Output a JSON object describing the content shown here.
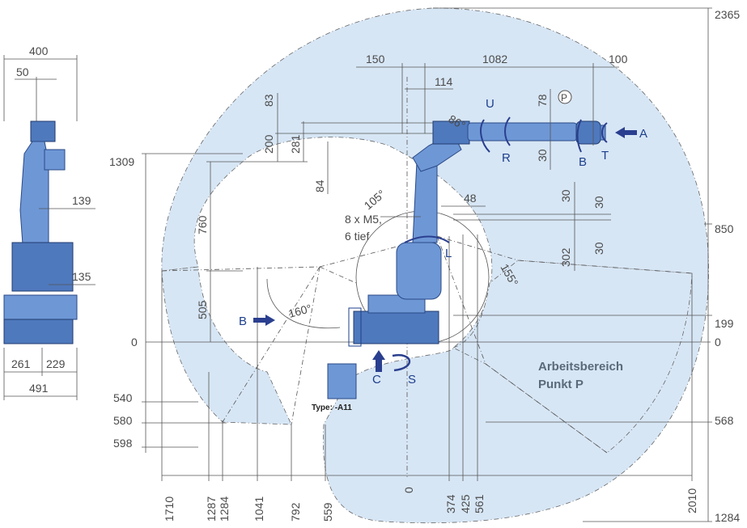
{
  "colors": {
    "workspace_fill": "#d7e6f5",
    "robot_body": "#6e97d6",
    "robot_dark": "#2b4a86",
    "arrow": "#2a3f8f",
    "dimension_text": "#4a4a4a"
  },
  "side_view": {
    "dims": {
      "w400": "400",
      "w50": "50",
      "d139": "139",
      "d135": "135",
      "w261": "261",
      "w229": "229",
      "w491": "491"
    }
  },
  "top_dims": {
    "d150": "150",
    "d1082": "1082",
    "d100": "100",
    "d114": "114",
    "d83": "83",
    "d78": "78",
    "d200": "200",
    "d281": "281",
    "d84": "84",
    "d30a": "30",
    "d48": "48",
    "d30b": "30",
    "d30c": "30",
    "d302": "302",
    "d30d": "30",
    "d760": "760",
    "d505": "505"
  },
  "right_scale": {
    "v2365": "2365",
    "v850": "850",
    "v199": "199",
    "v0": "0",
    "v568": "568",
    "v1284": "1284"
  },
  "left_scale": {
    "v1309": "1309",
    "v0": "0",
    "v540": "540",
    "v580": "580",
    "v598": "598"
  },
  "bottom_scale": [
    "1710",
    "1287",
    "1284",
    "1041",
    "792",
    "559",
    "0",
    "374",
    "425",
    "561",
    "2010"
  ],
  "angles": {
    "a86": "86°",
    "a105": "105°",
    "a155": "155°",
    "a160": "160°"
  },
  "axes": {
    "U": "U",
    "R": "R",
    "B": "B",
    "T": "T",
    "A": "A",
    "L": "L",
    "S": "S",
    "C": "C",
    "B_left": "B",
    "P": "P"
  },
  "annotations": {
    "mount_line1": "8 x M5,",
    "mount_line2": "6 tief",
    "workspace_line1": "Arbeitsbereich",
    "workspace_line2": "Punkt P",
    "type_label": "Type: -A11"
  }
}
